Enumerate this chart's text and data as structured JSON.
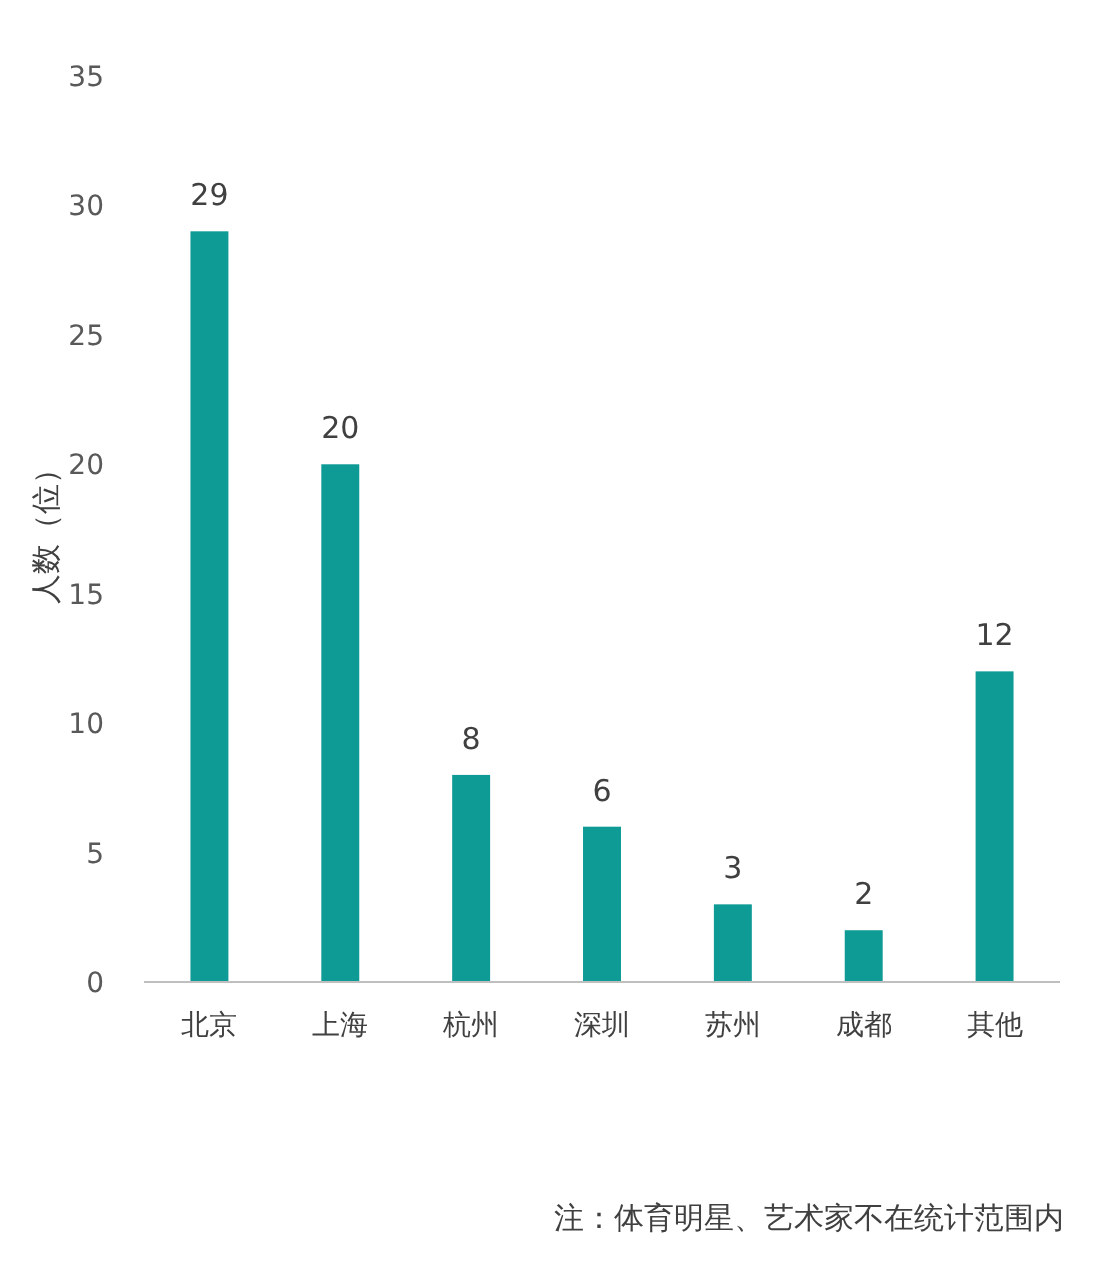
{
  "chart_data": {
    "type": "bar",
    "ylabel": "人数（位）",
    "categories": [
      "北京",
      "上海",
      "杭州",
      "深圳",
      "苏州",
      "成都",
      "其他"
    ],
    "values": [
      29,
      20,
      8,
      6,
      3,
      2,
      12
    ],
    "color": "#0e9a95",
    "ylim": [
      0,
      35
    ],
    "yticks": [
      0,
      5,
      10,
      15,
      20,
      25,
      30,
      35
    ],
    "data_labels": true,
    "annotations": [
      "注：体育明星、艺术家不在统计范围内"
    ]
  }
}
